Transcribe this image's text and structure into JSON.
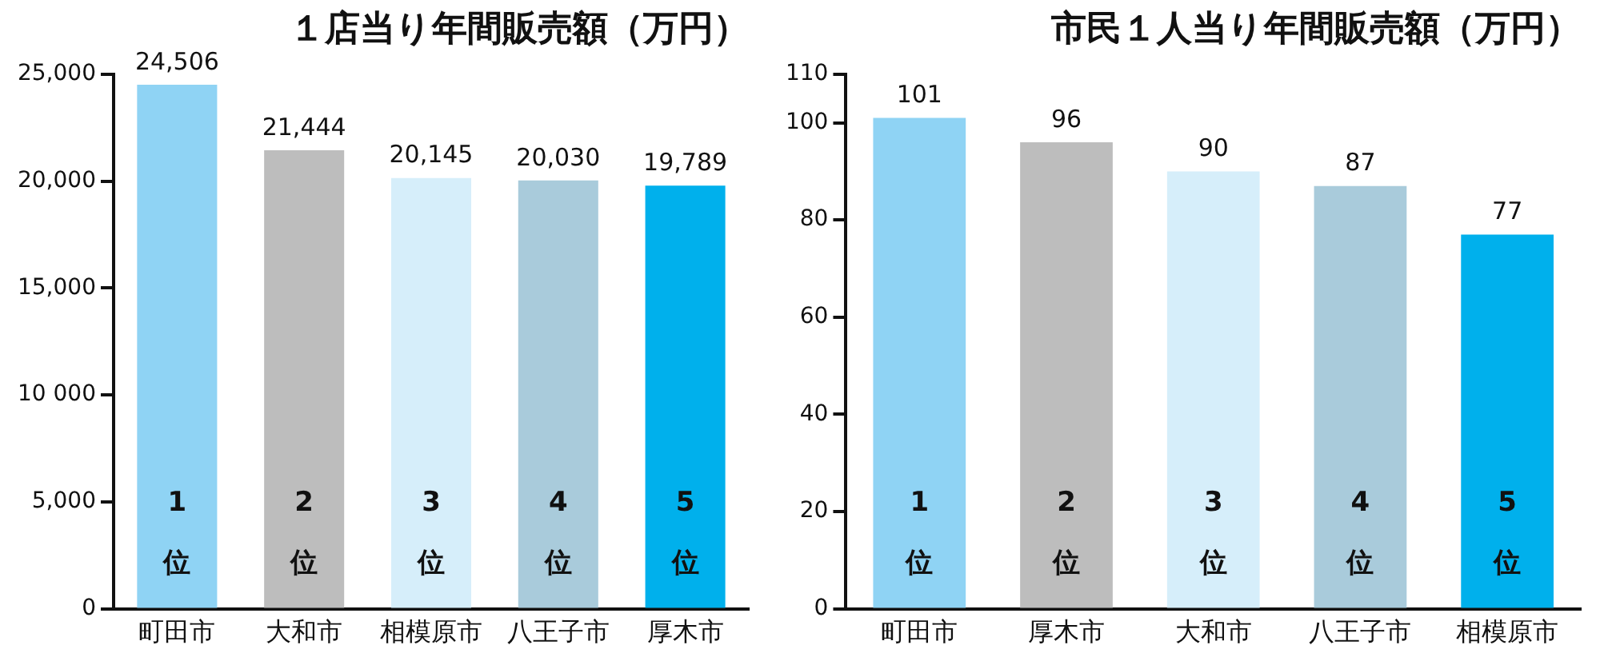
{
  "chart_data": [
    {
      "type": "bar",
      "title": "１店当り年間販売額（万円）",
      "categories": [
        "町田市",
        "大和市",
        "相模原市",
        "八王子市",
        "厚木市"
      ],
      "values": [
        24506,
        21444,
        20145,
        20030,
        19789
      ],
      "colors": [
        "#8fd3f4",
        "#bdbdbd",
        "#d6eefa",
        "#a9cbdb",
        "#00b0ec"
      ],
      "value_labels": [
        "24,506",
        "21,444",
        "20,145",
        "20,030",
        "19,789"
      ],
      "ylim": [
        0,
        25000
      ],
      "yticks": [
        0,
        {
          "value": 5000,
          "label": "5,000"
        },
        {
          "value": 10000,
          "label": "10 000"
        },
        {
          "value": 15000,
          "label": "15,000"
        },
        {
          "value": 20000,
          "label": "20,000"
        },
        {
          "value": 25000,
          "label": "25,000"
        }
      ],
      "grid": false,
      "legend": false,
      "annotations": [
        "1位",
        "2位",
        "3位",
        "4位",
        "5位"
      ]
    },
    {
      "type": "bar",
      "title": "市民１人当り年間販売額（万円）",
      "categories": [
        "町田市",
        "厚木市",
        "大和市",
        "八王子市",
        "相模原市"
      ],
      "values": [
        101,
        96,
        90,
        87,
        77
      ],
      "colors": [
        "#8fd3f4",
        "#bdbdbd",
        "#d6eefa",
        "#a9cbdb",
        "#00b0ec"
      ],
      "value_labels": [
        "101",
        "96",
        "90",
        "87",
        "77"
      ],
      "ylim": [
        0,
        110
      ],
      "yticks": [
        0,
        20,
        40,
        60,
        80,
        100,
        110
      ],
      "grid": false,
      "legend": false,
      "annotations": [
        "1位",
        "2位",
        "3位",
        "4位",
        "5位"
      ]
    }
  ]
}
